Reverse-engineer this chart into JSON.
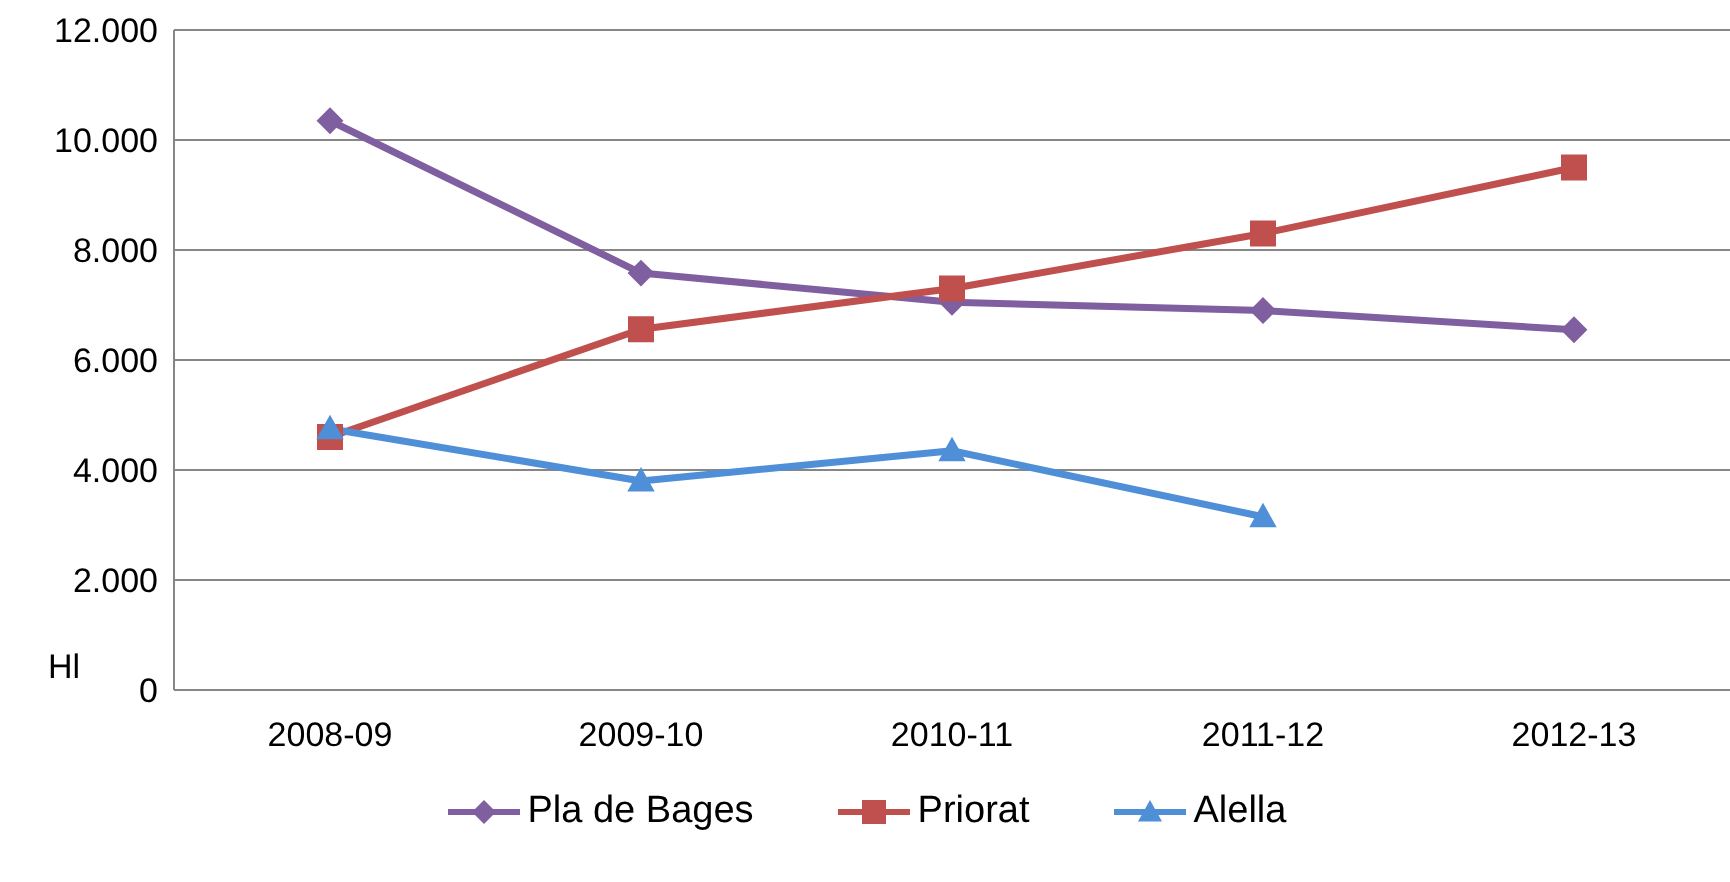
{
  "chart_data": {
    "type": "line",
    "ylabel": "Hl",
    "categories": [
      "2008-09",
      "2009-10",
      "2010-11",
      "2011-12",
      "2012-13"
    ],
    "series": [
      {
        "name": "Pla de Bages",
        "color": "#7f5fa0",
        "marker": "diamond",
        "values": [
          10350,
          7580,
          7050,
          6900,
          6550
        ]
      },
      {
        "name": "Priorat",
        "color": "#c0504d",
        "marker": "square",
        "values": [
          4600,
          6560,
          7300,
          8300,
          9500
        ]
      },
      {
        "name": "Alella",
        "color": "#4f8fd8",
        "marker": "triangle",
        "values": [
          4750,
          3800,
          4350,
          3150,
          null
        ]
      }
    ],
    "ylim": [
      0,
      12000
    ],
    "yticks": [
      {
        "value": 0,
        "label": "0"
      },
      {
        "value": 2000,
        "label": "2.000"
      },
      {
        "value": 4000,
        "label": "4.000"
      },
      {
        "value": 6000,
        "label": "6.000"
      },
      {
        "value": 8000,
        "label": "8.000"
      },
      {
        "value": 10000,
        "label": "10.000"
      },
      {
        "value": 12000,
        "label": "12.000"
      }
    ],
    "grid": "y",
    "legend": "bottom",
    "line_style": "solid"
  }
}
